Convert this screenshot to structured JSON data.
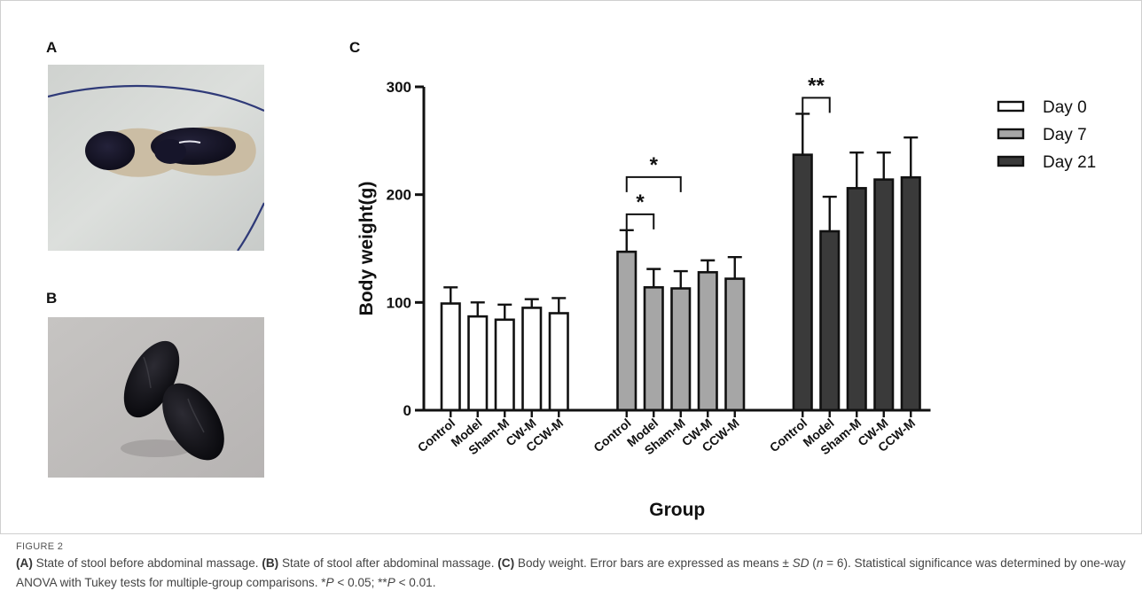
{
  "panels": {
    "a": "A",
    "b": "B",
    "c": "C"
  },
  "figure_label": "FIGURE 2",
  "caption": {
    "a_tag": "(A)",
    "a_text": " State of stool before abdominal massage. ",
    "b_tag": "(B)",
    "b_text": " State of stool after abdominal massage. ",
    "c_tag": "(C)",
    "c_text": " Body weight. Error bars are expressed as means ± ",
    "sd": "SD",
    "n_open": " (",
    "n_var": "n",
    "n_rest": " = 6). Statistical significance was determined by one-way ANOVA with Tukey tests for multiple-group comparisons. *",
    "p1": "P",
    "p1_rest": " < 0.05; **",
    "p2": "P",
    "p2_rest": " < 0.01."
  },
  "colors": {
    "day0": "#ffffff",
    "day7": "#a6a6a6",
    "day21": "#3a3a3a",
    "axis": "#111111"
  },
  "chart_data": {
    "type": "bar",
    "ylabel": "Body weight(g)",
    "xlabel": "Group",
    "ylim": [
      0,
      300
    ],
    "yticks": [
      0,
      100,
      200,
      300
    ],
    "categories": [
      "Control",
      "Model",
      "Sham-M",
      "CW-M",
      "CCW-M"
    ],
    "series": [
      {
        "name": "Day 0",
        "values": [
          99,
          87,
          84,
          95,
          90
        ],
        "errors": [
          15,
          13,
          14,
          8,
          14
        ]
      },
      {
        "name": "Day 7",
        "values": [
          147,
          114,
          113,
          128,
          122
        ],
        "errors": [
          20,
          17,
          16,
          11,
          20
        ]
      },
      {
        "name": "Day 21",
        "values": [
          237,
          166,
          206,
          214,
          216
        ],
        "errors": [
          38,
          32,
          33,
          25,
          37
        ]
      }
    ],
    "annotations": [
      {
        "series": 1,
        "from": 0,
        "to": 1,
        "label": "*"
      },
      {
        "series": 1,
        "from": 0,
        "to": 2,
        "label": "*"
      },
      {
        "series": 2,
        "from": 0,
        "to": 1,
        "label": "**"
      }
    ],
    "legend_position": "right"
  }
}
